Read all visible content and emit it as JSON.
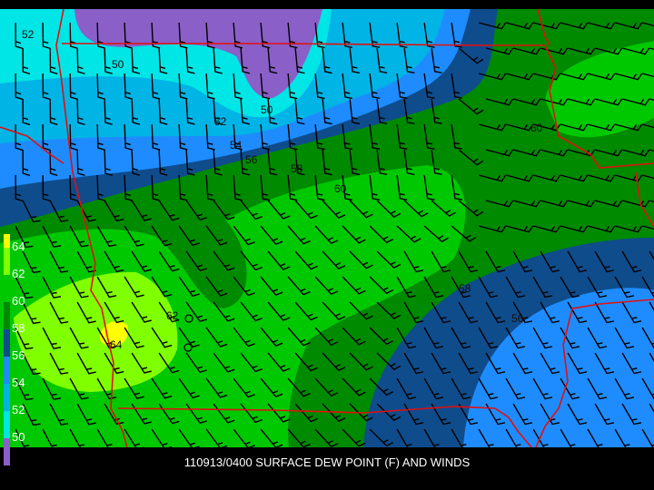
{
  "caption": "110913/0400 SURFACE DEW POINT (F) AND WINDS",
  "legend": {
    "labels": [
      "64",
      "62",
      "60",
      "58",
      "56",
      "54",
      "52",
      "50"
    ],
    "colors_bottom_to_top": [
      "#8a5fc8",
      "#00e5e5",
      "#00b4e6",
      "#1e8cff",
      "#0f4c8c",
      "#008a00",
      "#00c800",
      "#80ff00",
      "#ffff00"
    ]
  },
  "contour_labels": [
    {
      "text": "52"
    },
    {
      "text": "50"
    },
    {
      "text": "50"
    },
    {
      "text": "52"
    },
    {
      "text": "54"
    },
    {
      "text": "56"
    },
    {
      "text": "58"
    },
    {
      "text": "60"
    },
    {
      "text": "60"
    },
    {
      "text": "58"
    },
    {
      "text": "56"
    },
    {
      "text": "62"
    },
    {
      "text": "64"
    }
  ],
  "colors": {
    "borders": "#e01010",
    "barbs": "#000000"
  }
}
